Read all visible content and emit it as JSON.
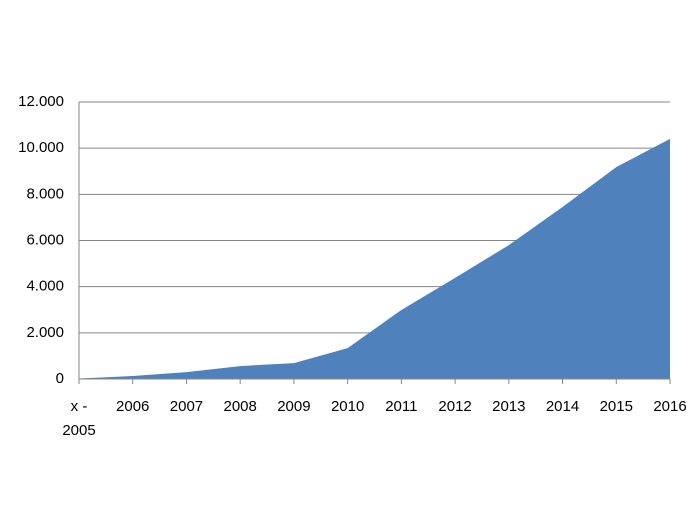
{
  "chart_data": {
    "type": "area",
    "categories": [
      "x - 2005",
      "2006",
      "2007",
      "2008",
      "2009",
      "2010",
      "2011",
      "2012",
      "2013",
      "2014",
      "2015",
      "2016"
    ],
    "series": [
      {
        "color": "#4f81bd",
        "values": [
          20,
          130,
          300,
          560,
          690,
          1340,
          2990,
          4380,
          5800,
          7450,
          9180,
          10400
        ]
      }
    ],
    "ylim": [
      0,
      12000
    ],
    "yticks": [
      {
        "value": 0,
        "label": "0"
      },
      {
        "value": 2000,
        "label": "2.000"
      },
      {
        "value": 4000,
        "label": "4.000"
      },
      {
        "value": 6000,
        "label": "6.000"
      },
      {
        "value": 8000,
        "label": "8.000"
      },
      {
        "value": 10000,
        "label": "10.000"
      },
      {
        "value": 12000,
        "label": "12.000"
      }
    ],
    "grid": true
  }
}
